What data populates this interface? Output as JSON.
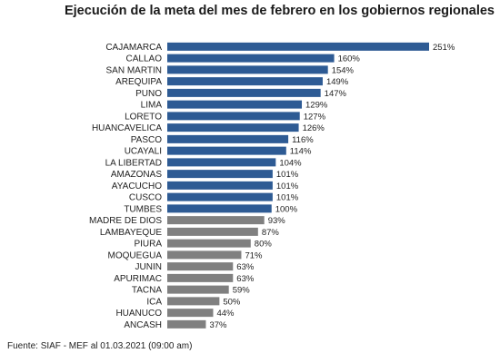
{
  "chart_data": {
    "type": "bar",
    "orientation": "horizontal",
    "title": "Ejecución de la meta del mes de febrero en los gobiernos regionales",
    "categories": [
      "CAJAMARCA",
      "CALLAO",
      "SAN MARTIN",
      "AREQUIPA",
      "PUNO",
      "LIMA",
      "LORETO",
      "HUANCAVELICA",
      "PASCO",
      "UCAYALI",
      "LA LIBERTAD",
      "AMAZONAS",
      "AYACUCHO",
      "CUSCO",
      "TUMBES",
      "MADRE DE DIOS",
      "LAMBAYEQUE",
      "PIURA",
      "MOQUEGUA",
      "JUNIN",
      "APURIMAC",
      "TACNA",
      "ICA",
      "HUANUCO",
      "ANCASH"
    ],
    "values": [
      251,
      160,
      154,
      149,
      147,
      129,
      127,
      126,
      116,
      114,
      104,
      101,
      101,
      101,
      100,
      93,
      87,
      80,
      71,
      63,
      63,
      59,
      50,
      44,
      37
    ],
    "value_labels": [
      "251%",
      "160%",
      "154%",
      "149%",
      "147%",
      "129%",
      "127%",
      "126%",
      "116%",
      "114%",
      "104%",
      "101%",
      "101%",
      "101%",
      "100%",
      "93%",
      "87%",
      "80%",
      "71%",
      "63%",
      "63%",
      "59%",
      "50%",
      "44%",
      "37%"
    ],
    "unit": "%",
    "xlim": [
      0,
      251
    ],
    "grid": false,
    "legend": "none",
    "colors": {
      "at_or_above_100": "#2e5b94",
      "below_100": "#808080"
    }
  },
  "footer": {
    "source": "Fuente: SIAF - MEF al 01.03.2021 (09:00 am)"
  }
}
